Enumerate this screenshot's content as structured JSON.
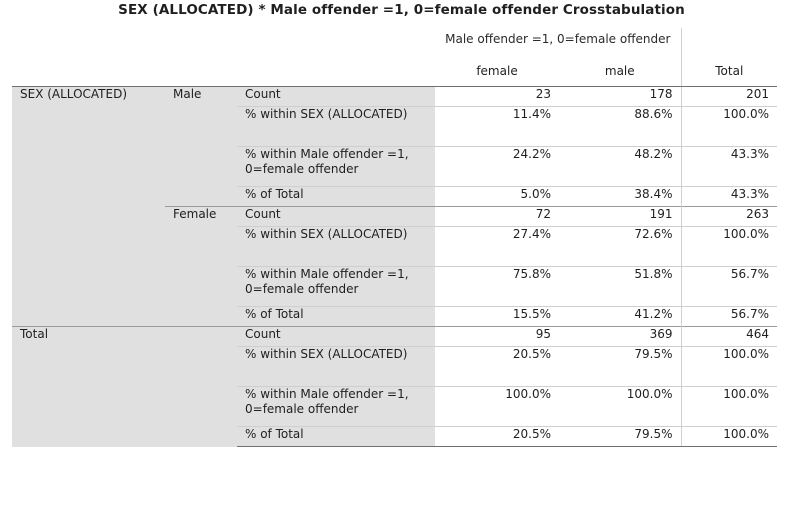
{
  "title": "SEX (ALLOCATED) * Male offender =1, 0=female offender Crosstabulation",
  "col_group_label": "Male offender =1, 0=female offender",
  "columns": [
    "female",
    "male",
    "Total"
  ],
  "row_var": "SEX (ALLOCATED)",
  "groups": [
    {
      "row_label": "Male",
      "rows": [
        {
          "stat": "Count",
          "values": [
            "23",
            "178",
            "201"
          ]
        },
        {
          "stat": "% within SEX (ALLOCATED)",
          "values": [
            "11.4%",
            "88.6%",
            "100.0%"
          ]
        },
        {
          "stat": "% within Male offender =1, 0=female offender",
          "values": [
            "24.2%",
            "48.2%",
            "43.3%"
          ]
        },
        {
          "stat": "% of Total",
          "values": [
            "5.0%",
            "38.4%",
            "43.3%"
          ]
        }
      ]
    },
    {
      "row_label": "Female",
      "rows": [
        {
          "stat": "Count",
          "values": [
            "72",
            "191",
            "263"
          ]
        },
        {
          "stat": "% within SEX (ALLOCATED)",
          "values": [
            "27.4%",
            "72.6%",
            "100.0%"
          ]
        },
        {
          "stat": "% within Male offender =1, 0=female offender",
          "values": [
            "75.8%",
            "51.8%",
            "56.7%"
          ]
        },
        {
          "stat": "% of Total",
          "values": [
            "15.5%",
            "41.2%",
            "56.7%"
          ]
        }
      ]
    }
  ],
  "total_group": {
    "label": "Total",
    "rows": [
      {
        "stat": "Count",
        "values": [
          "95",
          "369",
          "464"
        ]
      },
      {
        "stat": "% within SEX (ALLOCATED)",
        "values": [
          "20.5%",
          "79.5%",
          "100.0%"
        ]
      },
      {
        "stat": "% within Male offender =1, 0=female offender",
        "values": [
          "100.0%",
          "100.0%",
          "100.0%"
        ]
      },
      {
        "stat": "% of Total",
        "values": [
          "20.5%",
          "79.5%",
          "100.0%"
        ]
      }
    ]
  }
}
